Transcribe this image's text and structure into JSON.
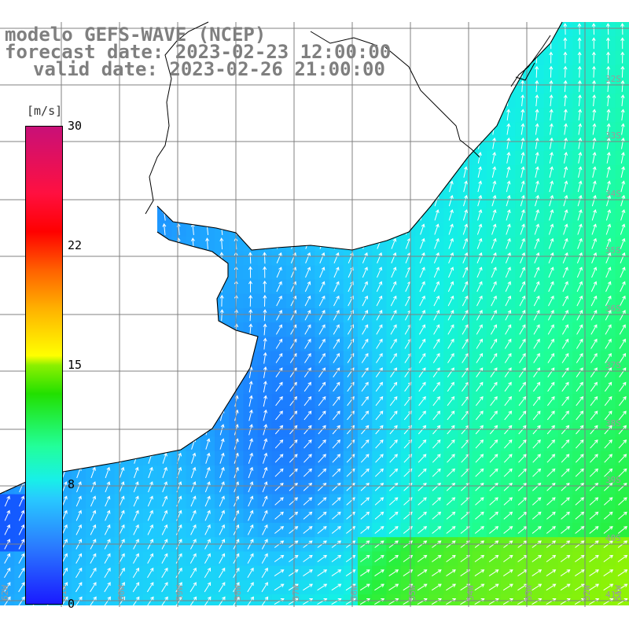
{
  "header": {
    "line1": "modelo GEFS-WAVE (NCEP)",
    "line2": "forecast date: 2023-02-23 12:00:00",
    "line3": "valid date: 2023-02-26 21:00:00"
  },
  "colorbar": {
    "unit": "[m/s]",
    "min": 0,
    "max": 30,
    "ticks": [
      "30",
      "22",
      "15",
      "8",
      "0"
    ],
    "tick_values": [
      30,
      22,
      15,
      8,
      0
    ]
  },
  "grid": {
    "lat_labels": [
      "32S",
      "33S",
      "34S",
      "35S",
      "36S",
      "37S",
      "38S",
      "39S",
      "40S",
      "41S"
    ],
    "lon_labels": [
      "62W",
      "61W",
      "60W",
      "59W",
      "58W",
      "57W",
      "56W",
      "55W",
      "54W",
      "53W",
      "52W",
      "51W"
    ]
  },
  "colors": {
    "land": "#ffffff",
    "coast": "#000000",
    "gridlines": "#808080",
    "text": "#7f7f7f",
    "arrows": "#ffffff"
  },
  "field": {
    "variable": "wind speed",
    "units": "m/s"
  }
}
